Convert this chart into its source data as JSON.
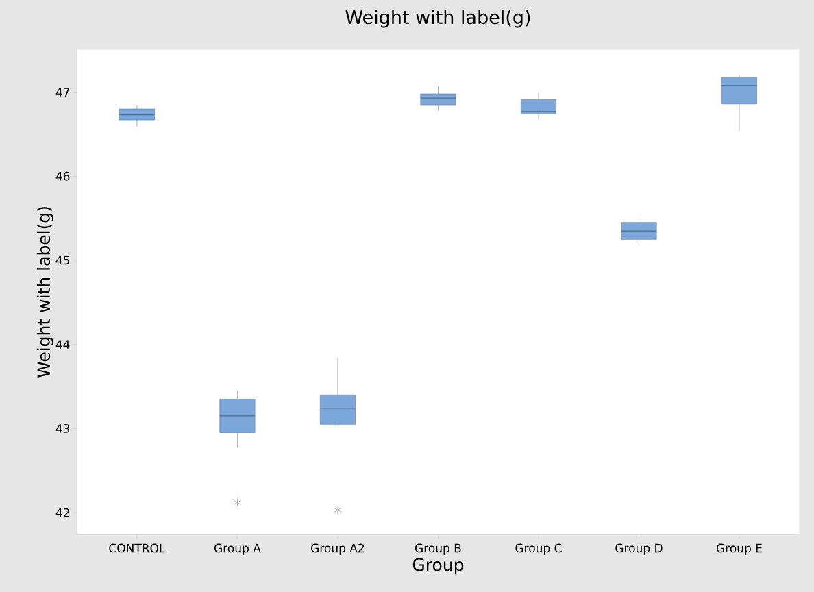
{
  "chart_data": {
    "type": "box",
    "title": "Weight with label(g)",
    "xlabel": "Group",
    "ylabel": "Weight with label(g)",
    "categories": [
      "CONTROL",
      "Group A",
      "Group A2",
      "Group B",
      "Group C",
      "Group D",
      "Group E"
    ],
    "color": "#7ba7db",
    "boxes": [
      {
        "low": 46.59,
        "q1": 46.67,
        "median": 46.73,
        "q3": 46.8,
        "high": 46.85
      },
      {
        "low": 42.77,
        "q1": 42.95,
        "median": 43.15,
        "q3": 43.35,
        "high": 43.45,
        "outliers": [
          42.12
        ]
      },
      {
        "low": 43.03,
        "q1": 43.05,
        "median": 43.24,
        "q3": 43.4,
        "high": 43.84,
        "outliers": [
          42.03
        ]
      },
      {
        "low": 46.78,
        "q1": 46.85,
        "median": 46.93,
        "q3": 46.98,
        "high": 47.07
      },
      {
        "low": 46.68,
        "q1": 46.74,
        "median": 46.77,
        "q3": 46.91,
        "high": 47.0
      },
      {
        "low": 45.22,
        "q1": 45.25,
        "median": 45.35,
        "q3": 45.45,
        "high": 45.53
      },
      {
        "low": 46.54,
        "q1": 46.86,
        "median": 47.08,
        "q3": 47.18,
        "high": 47.2
      }
    ],
    "ylim": [
      41.74,
      47.51
    ],
    "yticks": [
      42,
      43,
      44,
      45,
      46,
      47
    ]
  }
}
